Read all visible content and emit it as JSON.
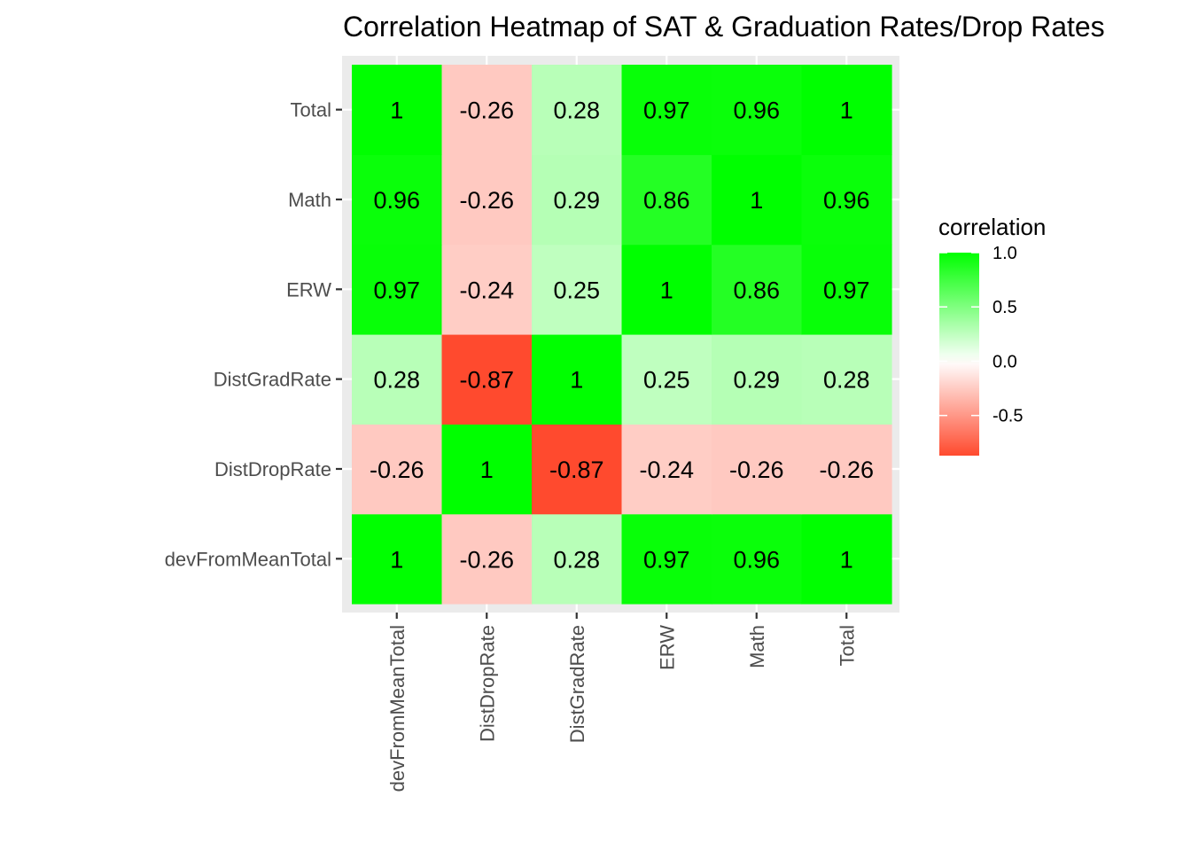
{
  "chart_data": {
    "type": "heatmap",
    "title": "Correlation Heatmap of SAT & Graduation Rates/Drop Rates",
    "xlabel": "",
    "ylabel": "",
    "x_categories": [
      "devFromMeanTotal",
      "DistDropRate",
      "DistGradRate",
      "ERW",
      "Math",
      "Total"
    ],
    "y_categories": [
      "devFromMeanTotal",
      "DistDropRate",
      "DistGradRate",
      "ERW",
      "Math",
      "Total"
    ],
    "values": [
      [
        1,
        -0.26,
        0.28,
        0.97,
        0.96,
        1
      ],
      [
        -0.26,
        1,
        -0.87,
        -0.24,
        -0.26,
        -0.26
      ],
      [
        0.28,
        -0.87,
        1,
        0.25,
        0.29,
        0.28
      ],
      [
        0.97,
        -0.24,
        0.25,
        1,
        0.86,
        0.97
      ],
      [
        0.96,
        -0.26,
        0.29,
        0.86,
        1,
        0.96
      ],
      [
        1,
        -0.26,
        0.28,
        0.97,
        0.96,
        1
      ]
    ],
    "cell_labels": [
      [
        "1",
        "-0.26",
        "0.28",
        "0.97",
        "0.96",
        "1"
      ],
      [
        "-0.26",
        "1",
        "-0.87",
        "-0.24",
        "-0.26",
        "-0.26"
      ],
      [
        "0.28",
        "-0.87",
        "1",
        "0.25",
        "0.29",
        "0.28"
      ],
      [
        "0.97",
        "-0.24",
        "0.25",
        "1",
        "0.86",
        "0.97"
      ],
      [
        "0.96",
        "-0.26",
        "0.29",
        "0.86",
        "1",
        "0.96"
      ],
      [
        "1",
        "-0.26",
        "0.28",
        "0.97",
        "0.96",
        "1"
      ]
    ],
    "color_scale": {
      "low": "#ff4a2e",
      "mid": "#ffffff",
      "high": "#00ff00",
      "midpoint": 0,
      "limits": [
        -0.87,
        1
      ]
    },
    "legend": {
      "title": "correlation",
      "position": "right",
      "breaks": [
        1.0,
        0.5,
        0.0,
        -0.5
      ],
      "break_labels": [
        "1.0",
        "0.5",
        "0.0",
        "-0.5"
      ]
    },
    "panel_background": "#ebebeb",
    "grid": true
  }
}
